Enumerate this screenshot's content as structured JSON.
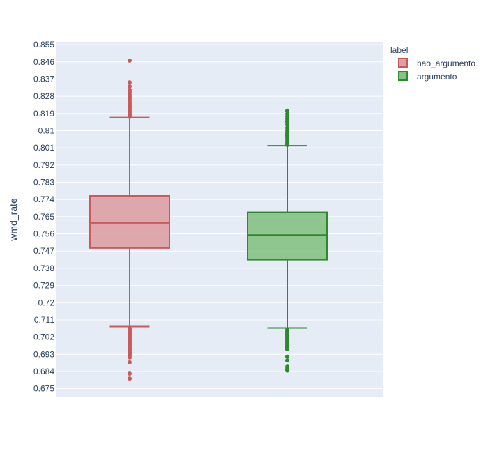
{
  "chart_data": {
    "type": "box",
    "xlabel": "",
    "ylabel": "wmd_rate",
    "ylim": [
      0.6705,
      0.8565
    ],
    "yticks": [
      0.675,
      0.684,
      0.693,
      0.702,
      0.711,
      0.72,
      0.729,
      0.738,
      0.747,
      0.756,
      0.765,
      0.774,
      0.783,
      0.792,
      0.801,
      0.81,
      0.819,
      0.828,
      0.837,
      0.846,
      0.855
    ],
    "grid": true,
    "legend": {
      "title": "label",
      "placement": "top-right",
      "entries": [
        "nao_argumento",
        "argumento"
      ]
    },
    "series": [
      {
        "name": "nao_argumento",
        "color": "#c85a5a",
        "fill": "#dda0a3",
        "q1": 0.7486,
        "median": 0.7617,
        "q3": 0.7759,
        "lower_fence": 0.7075,
        "upper_fence": 0.8169,
        "outliers": [
          0.8467,
          0.8353,
          0.8332,
          0.8314,
          0.83,
          0.8288,
          0.8278,
          0.8264,
          0.8252,
          0.8242,
          0.823,
          0.822,
          0.8212,
          0.8203,
          0.8195,
          0.8187,
          0.8178,
          0.8172,
          0.7065,
          0.7058,
          0.7049,
          0.7042,
          0.7035,
          0.7028,
          0.702,
          0.7012,
          0.7004,
          0.6996,
          0.6988,
          0.698,
          0.6972,
          0.6964,
          0.6956,
          0.6948,
          0.694,
          0.6932,
          0.6924,
          0.6914,
          0.6888,
          0.6829,
          0.6803
        ]
      },
      {
        "name": "argumento",
        "color": "#2b8a2b",
        "fill": "#85c285",
        "q1": 0.7425,
        "median": 0.7554,
        "q3": 0.7673,
        "lower_fence": 0.7068,
        "upper_fence": 0.8021,
        "outliers": [
          0.8205,
          0.8188,
          0.8175,
          0.8163,
          0.8152,
          0.8143,
          0.8131,
          0.8115,
          0.8102,
          0.8092,
          0.8083,
          0.8074,
          0.8065,
          0.8055,
          0.8043,
          0.8033,
          0.8025,
          0.7058,
          0.705,
          0.7042,
          0.7034,
          0.7026,
          0.7018,
          0.701,
          0.7002,
          0.6994,
          0.6986,
          0.6978,
          0.697,
          0.6962,
          0.6956,
          0.6918,
          0.6898,
          0.6865,
          0.6852,
          0.6845
        ]
      }
    ]
  }
}
